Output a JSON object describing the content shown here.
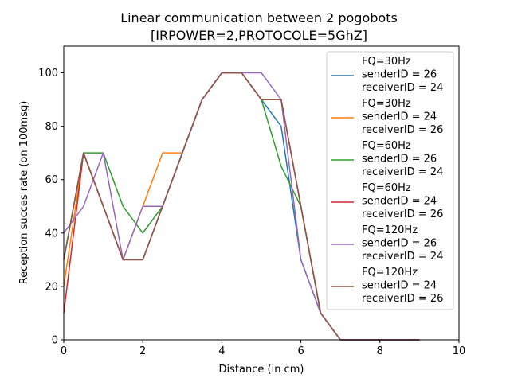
{
  "chart_data": {
    "type": "line",
    "title_lines": [
      "Linear communication between 2 pogobots",
      "[IRPOWER=2,PROTOCOLE=5GhZ]"
    ],
    "xlabel": "Distance (in cm)",
    "ylabel": "Reception succes rate (on 100msg)",
    "xlim": [
      0,
      10
    ],
    "ylim": [
      0,
      110
    ],
    "xticks": [
      0,
      2,
      4,
      6,
      8,
      10
    ],
    "yticks": [
      0,
      20,
      40,
      60,
      80,
      100
    ],
    "grid": false,
    "legend_position": "upper right",
    "x": [
      0,
      0.5,
      1,
      1.5,
      2,
      2.5,
      3,
      3.5,
      4,
      4.5,
      5,
      5.5,
      6,
      6.5,
      7,
      7.5,
      8,
      8.5,
      9
    ],
    "series": [
      {
        "label_lines": [
          "FQ=30Hz",
          "senderID = 26",
          "receiverID = 24"
        ],
        "color": "#1f77b4",
        "values": [
          30,
          70,
          50,
          30,
          30,
          50,
          70,
          90,
          100,
          100,
          90,
          80,
          30,
          10,
          0,
          0,
          0,
          0,
          0
        ]
      },
      {
        "label_lines": [
          "FQ=30Hz",
          "senderID = 24",
          "receiverID = 26"
        ],
        "color": "#ff7f0e",
        "values": [
          20,
          70,
          50,
          30,
          50,
          70,
          70,
          90,
          100,
          100,
          90,
          90,
          50,
          10,
          0,
          0,
          0,
          0,
          0
        ]
      },
      {
        "label_lines": [
          "FQ=60Hz",
          "senderID = 26",
          "receiverID = 24"
        ],
        "color": "#2ca02c",
        "values": [
          30,
          70,
          70,
          50,
          40,
          50,
          70,
          90,
          100,
          100,
          90,
          65,
          50,
          10,
          0,
          0,
          0,
          0,
          0
        ]
      },
      {
        "label_lines": [
          "FQ=60Hz",
          "senderID = 24",
          "receiverID = 26"
        ],
        "color": "#d62728",
        "values": [
          10,
          70,
          50,
          30,
          30,
          50,
          70,
          90,
          100,
          100,
          90,
          90,
          50,
          10,
          0,
          0,
          0,
          0,
          0
        ]
      },
      {
        "label_lines": [
          "FQ=120Hz",
          "senderID = 26",
          "receiverID = 24"
        ],
        "color": "#9467bd",
        "values": [
          40,
          50,
          70,
          30,
          50,
          50,
          70,
          90,
          100,
          100,
          100,
          90,
          30,
          10,
          0,
          0,
          0,
          0,
          0
        ]
      },
      {
        "label_lines": [
          "FQ=120Hz",
          "senderID = 24",
          "receiverID = 26"
        ],
        "color": "#8c564b",
        "values": [
          30,
          70,
          50,
          30,
          30,
          50,
          70,
          90,
          100,
          100,
          90,
          90,
          50,
          10,
          0,
          0,
          0,
          0,
          0
        ]
      }
    ]
  }
}
